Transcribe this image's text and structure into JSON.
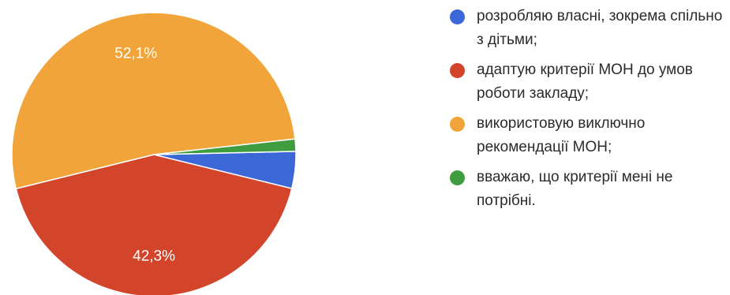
{
  "chart_data": {
    "type": "pie",
    "title": "",
    "legend_position": "right",
    "slices": [
      {
        "label": "розробляю власні, зокрема спільно з дітьми;",
        "value": 4.2,
        "color": "#3b68d6",
        "display_label": ""
      },
      {
        "label": "адаптую критерії МОН до умов роботи закладу;",
        "value": 42.3,
        "color": "#d2452b",
        "display_label": "42,3%"
      },
      {
        "label": "використовую виключно рекомендації МОН;",
        "value": 52.1,
        "color": "#f0a43a",
        "display_label": "52,1%"
      },
      {
        "label": "вважаю, що критерії мені не потрібні.",
        "value": 1.4,
        "color": "#3f9c3f",
        "display_label": ""
      }
    ]
  }
}
